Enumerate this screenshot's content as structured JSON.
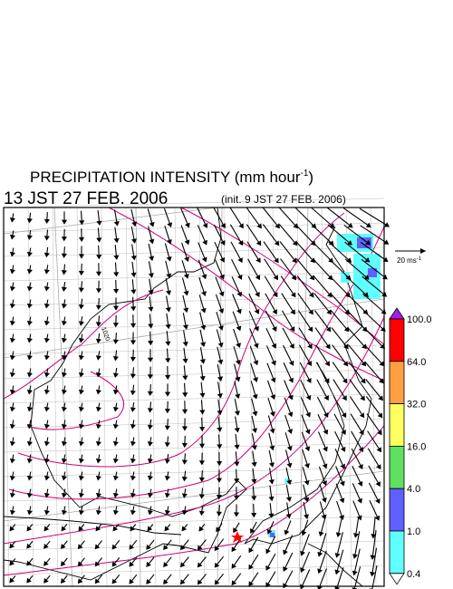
{
  "title": {
    "main": "PRECIPITATION INTENSITY (mm hour",
    "unit_exponent": "-1",
    "close": ")"
  },
  "valid_time": "13 JST 27 FEB. 2006",
  "init_time": "(init. 9 JST 27 FEB. 2006)",
  "reference_arrow": {
    "label": "20 ms",
    "exponent": "-1"
  },
  "colorbar": {
    "labels": [
      "100.0",
      "64.0",
      "32.0",
      "16.0",
      "4.0",
      "1.0",
      "0.4"
    ],
    "colors": [
      "#a020f0",
      "#ff0000",
      "#ffa040",
      "#ffff60",
      "#60e060",
      "#6060ff",
      "#60ffff",
      "#ffffff"
    ]
  },
  "contour_label": "1020"
}
